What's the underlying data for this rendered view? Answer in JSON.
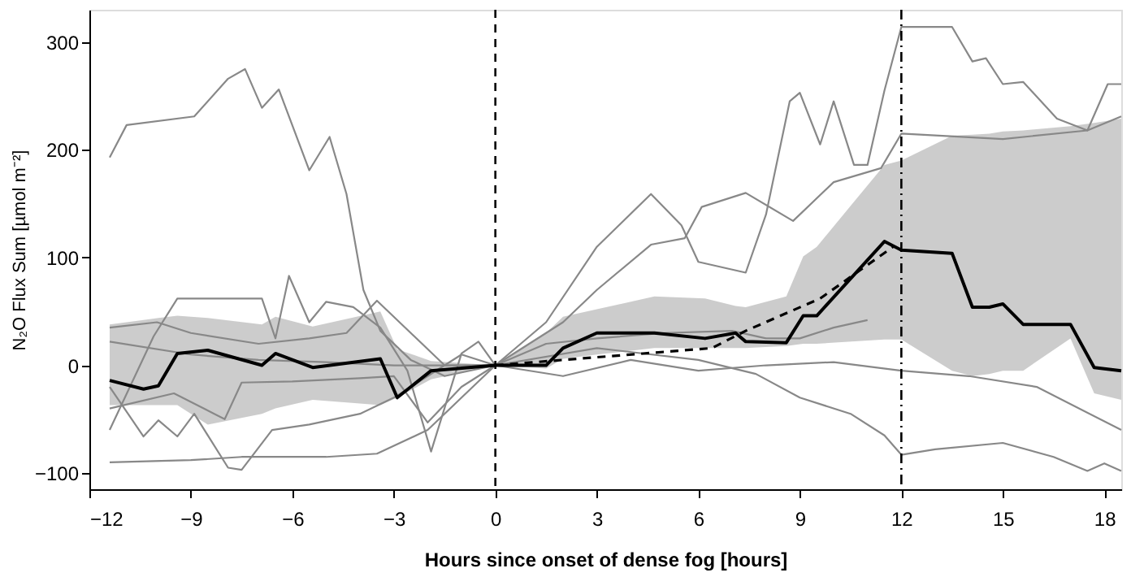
{
  "chart_data": {
    "type": "line",
    "xlabel": "Hours since onset of dense fog [hours]",
    "ylabel": "N₂O Flux Sum [µmol m⁻²]",
    "xlim": [
      -12,
      18.5
    ],
    "ylim": [
      -115,
      330
    ],
    "xticks": [
      -12,
      -9,
      -6,
      -3,
      0,
      3,
      6,
      9,
      12,
      15,
      18
    ],
    "yticks": [
      -100,
      0,
      100,
      200,
      300
    ],
    "grid": false,
    "marker": "none",
    "series": [
      {
        "color": "#888888",
        "x": [
          -11.4,
          -10.9,
          -8.9,
          -7.9,
          -7.4,
          -6.9,
          -6.4,
          -5.5,
          -4.9,
          -4.4,
          -3.9,
          -3.4,
          -2.5,
          -1.5,
          0,
          1.5,
          3,
          4.6,
          5.5,
          6,
          7.4,
          8,
          8.7,
          9,
          9.6,
          10,
          10.6,
          11,
          11.5,
          12,
          13.5,
          14.1,
          14.5,
          15,
          15.6,
          16.6,
          17.5,
          18.1,
          18.5
        ],
        "values": [
          193,
          223,
          231,
          266,
          275,
          239,
          256,
          181,
          212,
          159,
          70,
          32,
          5,
          -10,
          0,
          40,
          110,
          159,
          130,
          96,
          86,
          140,
          245,
          253,
          205,
          245,
          186,
          186,
          255,
          314,
          314,
          282,
          285,
          261,
          263,
          229,
          218,
          261,
          261
        ]
      },
      {
        "color": "#888888",
        "x": [
          -11.4,
          -9,
          -7.5,
          -5,
          -3.5,
          -2,
          -1,
          0,
          3,
          6,
          7.7,
          9,
          10.5,
          11.5,
          12,
          13,
          15,
          16.5,
          17.5,
          18,
          18.5
        ],
        "values": [
          -90,
          -88,
          -85,
          -85,
          -82,
          -60,
          -30,
          0,
          16,
          5,
          -8,
          -30,
          -45,
          -65,
          -83,
          -78,
          -72,
          -85,
          -98,
          -91,
          -98
        ]
      },
      {
        "color": "#888888",
        "x": [
          -11.4,
          -10.4,
          -9.96,
          -9.4,
          -8.9,
          -7.9,
          -7.5,
          -6.6,
          -5.5,
          -4,
          -3,
          -2,
          -1,
          0,
          2,
          3,
          4.6,
          5.6,
          6.1,
          7.4,
          8.8,
          10,
          11.4,
          12,
          15,
          17.5,
          18.5
        ],
        "values": [
          -20,
          -66,
          -51,
          -66,
          -45,
          -95,
          -97,
          -60,
          -55,
          -45,
          -30,
          -10,
          10,
          0,
          40,
          70,
          112,
          118,
          147,
          160,
          134,
          170,
          183,
          215,
          210,
          218,
          231
        ]
      },
      {
        "color": "#888888",
        "x": [
          -11.4,
          -10.1,
          -9.4,
          -6.9,
          -6.5,
          -6.1,
          -5.5,
          -5,
          -4.2,
          -3.4,
          -2.6,
          -1.9,
          -1,
          -0.5,
          0,
          2,
          4,
          6,
          8,
          10,
          12,
          14,
          16,
          18.5
        ],
        "values": [
          -60,
          27,
          62,
          62,
          25,
          83,
          40,
          59,
          54,
          35,
          -5,
          -80,
          11,
          22,
          0,
          -10,
          5,
          -5,
          0,
          3,
          -5,
          -10,
          -20,
          -60
        ]
      },
      {
        "color": "#888888",
        "x": [
          -11.4,
          -10,
          -9,
          -7,
          -5.5,
          -4.4,
          -3.5,
          -2.5,
          -1.5,
          0,
          1.5,
          3,
          5,
          7,
          8,
          9,
          10,
          11
        ],
        "values": [
          35,
          40,
          30,
          20,
          25,
          30,
          60,
          30,
          0,
          0,
          20,
          25,
          30,
          32,
          25,
          25,
          35,
          42
        ]
      },
      {
        "color": "#888888",
        "x": [
          -11.4,
          -9,
          -7,
          -5,
          -3,
          0
        ],
        "values": [
          22,
          10,
          5,
          3,
          0,
          0
        ]
      },
      {
        "color": "#888888",
        "x": [
          -11.4,
          -9.5,
          -8,
          -7.5,
          -6,
          -4,
          -3,
          -2,
          -1,
          0
        ],
        "values": [
          -40,
          -26,
          -50,
          -16,
          -15,
          -12,
          -10,
          -53,
          -20,
          0
        ]
      },
      {
        "color": "#000000",
        "x": [
          -11.4,
          -10.4,
          -9.96,
          -9.4,
          -8.5,
          -6.9,
          -6.5,
          -5.4,
          -3.4,
          -2.9,
          -1.9,
          0,
          1.5,
          2,
          3,
          4.7,
          6.2,
          7.1,
          7.4,
          8.6,
          9.1,
          9.5,
          11.5,
          12,
          13.5,
          14.1,
          14.6,
          15,
          15.6,
          17,
          17.7,
          18.5
        ],
        "values": [
          -14,
          -22,
          -19,
          11,
          14,
          0,
          11,
          -2,
          6,
          -30,
          -5,
          0,
          0,
          16,
          30,
          30,
          25,
          30,
          22,
          21,
          46,
          46,
          115,
          107,
          104,
          54,
          54,
          57,
          38,
          38,
          -2,
          -5
        ],
        "lower": [
          -37,
          -37,
          -37,
          -37,
          -55,
          -45,
          -40,
          -32,
          -37,
          -30,
          -13,
          0,
          -3,
          6,
          10,
          16,
          16,
          16,
          16,
          18,
          20,
          20,
          24,
          24,
          -5,
          -10,
          -8,
          -5,
          -5,
          25,
          -26,
          -32
        ],
        "upper": [
          38,
          42,
          44,
          46,
          44,
          38,
          45,
          36,
          50,
          15,
          4,
          0,
          30,
          45,
          52,
          64,
          62,
          55,
          54,
          64,
          101,
          110,
          186,
          190,
          213,
          214,
          215,
          217,
          218,
          222,
          225,
          229
        ]
      },
      {
        "color": "#000000",
        "line_style": "dashed",
        "x": [
          0,
          6.4,
          7.4,
          9.6,
          11.8
        ],
        "values": [
          0,
          16,
          32,
          62,
          111
        ]
      }
    ],
    "ref_lines": [
      {
        "axis": "x",
        "value": 0,
        "color": "#000000",
        "line_style": "dashed"
      },
      {
        "axis": "x",
        "value": 12,
        "color": "#000000",
        "line_style": "dotted"
      }
    ]
  }
}
